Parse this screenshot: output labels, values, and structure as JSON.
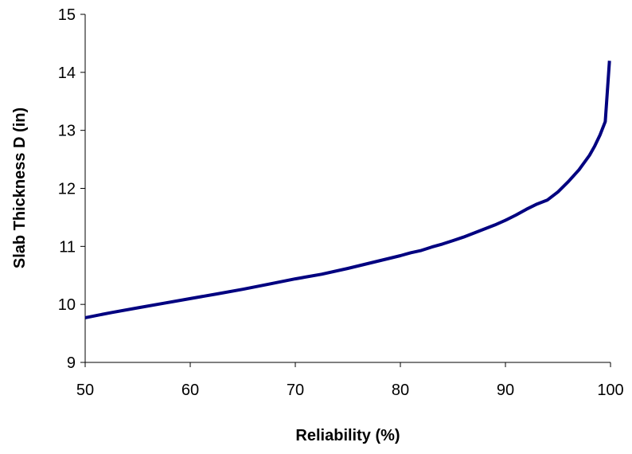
{
  "chart_data": {
    "type": "line",
    "title": "",
    "xlabel": "Reliability (%)",
    "ylabel": "Slab Thickness D (in)",
    "xlim": [
      50,
      100
    ],
    "ylim": [
      9,
      15
    ],
    "x_ticks": [
      50,
      60,
      70,
      80,
      90,
      100
    ],
    "y_ticks": [
      9,
      10,
      11,
      12,
      13,
      14,
      15
    ],
    "x_tick_labels": [
      "50",
      "60",
      "70",
      "80",
      "90",
      "100"
    ],
    "y_tick_labels": [
      "9",
      "10",
      "11",
      "12",
      "13",
      "14",
      "15"
    ],
    "grid": false,
    "legend": "none",
    "series": [
      {
        "color": "#000080",
        "x": [
          50,
          52.5,
          55,
          57.5,
          60,
          62.5,
          65,
          67.5,
          70,
          72.5,
          75,
          77.5,
          80,
          81,
          82,
          83,
          84,
          85,
          86,
          87,
          88,
          89,
          90,
          91,
          92,
          93,
          94,
          95,
          96,
          97,
          98,
          98.5,
          99,
          99.5,
          99.9
        ],
        "values": [
          9.77,
          9.86,
          9.94,
          10.02,
          10.1,
          10.18,
          10.26,
          10.35,
          10.44,
          10.52,
          10.62,
          10.73,
          10.84,
          10.89,
          10.93,
          10.99,
          11.04,
          11.1,
          11.16,
          11.23,
          11.3,
          11.37,
          11.45,
          11.54,
          11.64,
          11.73,
          11.8,
          11.94,
          12.12,
          12.32,
          12.57,
          12.73,
          12.92,
          13.15,
          14.2
        ]
      }
    ]
  }
}
